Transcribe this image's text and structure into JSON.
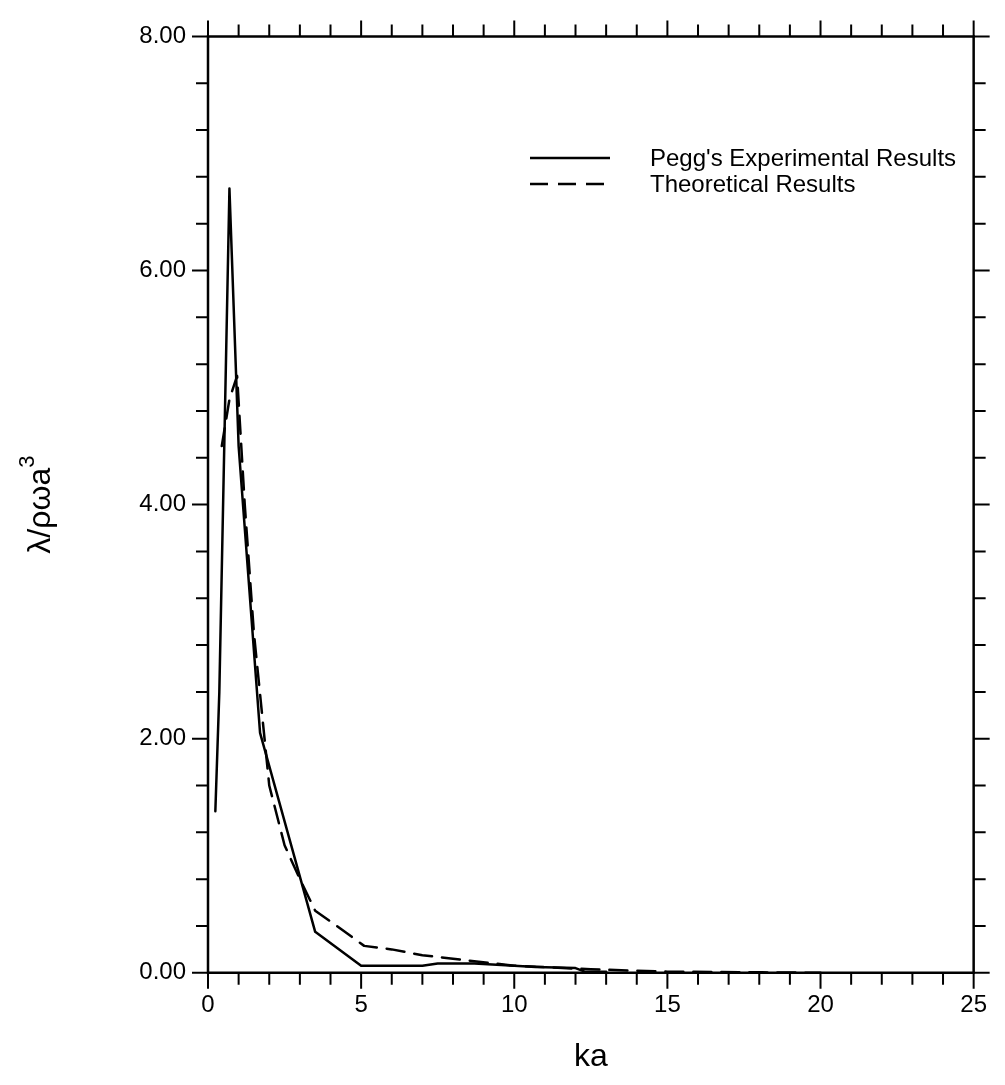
{
  "chart_data": {
    "type": "line",
    "xlabel": "ka",
    "ylabel": "λ/ρωa$^{3}$",
    "xlim": [
      0,
      25
    ],
    "ylim": [
      0,
      8
    ],
    "xticks": [
      0,
      {
        "value": 1,
        "label": null
      },
      {
        "value": 2,
        "label": null
      },
      {
        "value": 3,
        "label": null
      },
      {
        "value": 4,
        "label": null
      },
      5,
      {
        "value": 6,
        "label": null
      },
      {
        "value": 7,
        "label": null
      },
      {
        "value": 8,
        "label": null
      },
      {
        "value": 9,
        "label": null
      },
      10,
      {
        "value": 11,
        "label": null
      },
      {
        "value": 12,
        "label": null
      },
      {
        "value": 13,
        "label": null
      },
      {
        "value": 14,
        "label": null
      },
      15,
      {
        "value": 16,
        "label": null
      },
      {
        "value": 17,
        "label": null
      },
      {
        "value": 18,
        "label": null
      },
      {
        "value": 19,
        "label": null
      },
      20,
      {
        "value": 21,
        "label": null
      },
      {
        "value": 22,
        "label": null
      },
      {
        "value": 23,
        "label": null
      },
      {
        "value": 24,
        "label": null
      },
      25
    ],
    "yticks": [
      {
        "value": 0,
        "label": "0.00"
      },
      {
        "value": 0.4,
        "label": null
      },
      {
        "value": 0.8,
        "label": null
      },
      {
        "value": 1.2,
        "label": null
      },
      {
        "value": 1.6,
        "label": null
      },
      {
        "value": 2,
        "label": "2.00"
      },
      {
        "value": 2.4,
        "label": null
      },
      {
        "value": 2.8,
        "label": null
      },
      {
        "value": 3.2,
        "label": null
      },
      {
        "value": 3.6,
        "label": null
      },
      {
        "value": 4,
        "label": "4.00"
      },
      {
        "value": 4.4,
        "label": null
      },
      {
        "value": 4.8,
        "label": null
      },
      {
        "value": 5.2,
        "label": null
      },
      {
        "value": 5.6,
        "label": null
      },
      {
        "value": 6,
        "label": "6.00"
      },
      {
        "value": 6.4,
        "label": null
      },
      {
        "value": 6.8,
        "label": null
      },
      {
        "value": 7.2,
        "label": null
      },
      {
        "value": 7.6,
        "label": null
      },
      {
        "value": 8,
        "label": "8.00"
      }
    ],
    "grid": false,
    "legend": "top right",
    "marker": "none",
    "series": [
      {
        "name": "Pegg's Experimental Results",
        "color": "#000000",
        "line_style": "solid",
        "x": [
          0.24,
          0.37,
          0.7,
          1.0,
          1.7,
          3.5,
          5.0,
          7.0,
          7.5,
          8.7,
          10.0,
          10.7,
          12.0,
          12.3,
          13.0
        ],
        "values": [
          1.38,
          2.4,
          6.7,
          4.5,
          2.05,
          0.35,
          0.06,
          0.06,
          0.08,
          0.08,
          0.06,
          0.05,
          0.04,
          0.01,
          0.01
        ]
      },
      {
        "name": "Theoretical Results",
        "color": "#000000",
        "line_style": "dashed",
        "x": [
          0.45,
          0.7,
          0.95,
          1.2,
          1.5,
          2.0,
          2.5,
          3.0,
          3.5,
          4.1,
          5.1,
          6.0,
          7.0,
          8.0,
          10.0,
          12.5,
          15.0,
          20.0
        ],
        "values": [
          4.5,
          4.9,
          5.1,
          4.0,
          2.9,
          1.6,
          1.09,
          0.8,
          0.53,
          0.42,
          0.23,
          0.2,
          0.15,
          0.12,
          0.06,
          0.03,
          0.01,
          0.0
        ]
      }
    ]
  }
}
